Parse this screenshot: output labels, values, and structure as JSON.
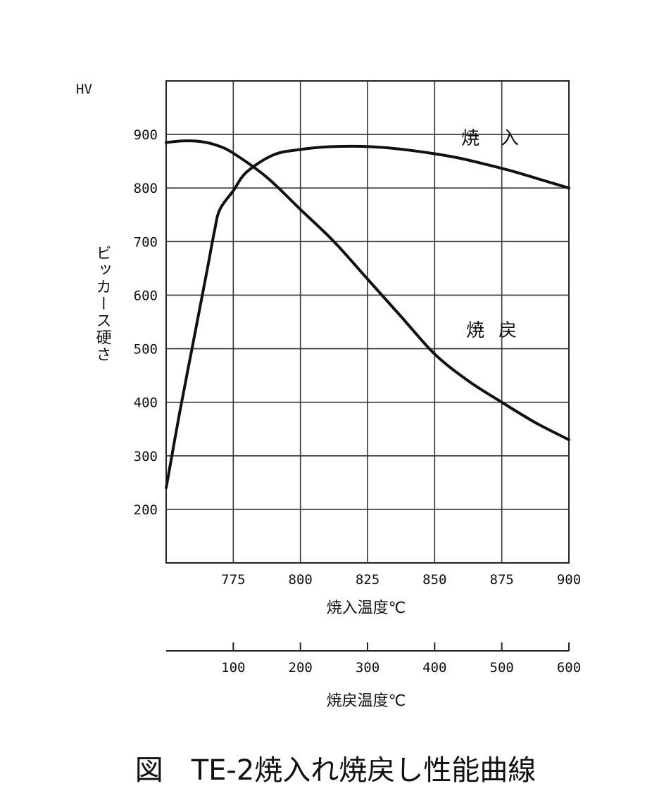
{
  "caption": "図　TE-2焼入れ焼戻し性能曲線",
  "chart_data": {
    "type": "line",
    "y_axis": {
      "unit_label": "HV",
      "label": "ビッカース硬さ",
      "range": [
        100,
        1000
      ],
      "ticks": [
        200,
        300,
        400,
        500,
        600,
        700,
        800,
        900
      ]
    },
    "x_axis_quench": {
      "label": "焼入温度℃",
      "range": [
        750,
        900
      ],
      "ticks": [
        775,
        800,
        825,
        850,
        875,
        900
      ]
    },
    "x_axis_temper": {
      "label": "焼戻温度℃",
      "range": [
        0,
        600
      ],
      "ticks": [
        100,
        200,
        300,
        400,
        500,
        600
      ]
    },
    "grid": true,
    "series": [
      {
        "name": "焼入",
        "axis": "quench",
        "x": [
          750,
          755,
          760,
          765,
          768,
          770,
          775,
          780,
          790,
          800,
          810,
          820,
          830,
          840,
          850,
          860,
          870,
          880,
          890,
          900
        ],
        "y": [
          240,
          380,
          510,
          640,
          720,
          760,
          795,
          830,
          862,
          872,
          877,
          878,
          876,
          871,
          864,
          855,
          843,
          830,
          815,
          800
        ]
      },
      {
        "name": "焼戻",
        "axis": "temper",
        "x": [
          0,
          25,
          50,
          75,
          100,
          150,
          200,
          250,
          300,
          350,
          400,
          450,
          500,
          550,
          600
        ],
        "y": [
          885,
          888,
          887,
          880,
          865,
          820,
          760,
          700,
          630,
          560,
          490,
          440,
          400,
          362,
          330
        ]
      }
    ]
  }
}
